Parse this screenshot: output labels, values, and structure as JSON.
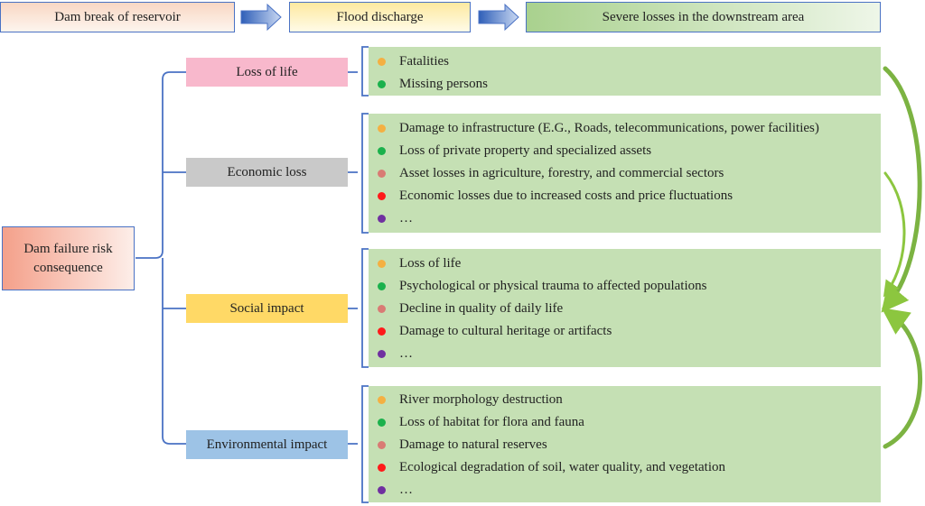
{
  "flow": {
    "steps": [
      "Dam break of reservoir",
      "Flood discharge",
      "Severe losses in the downstream area"
    ]
  },
  "root": {
    "line1": "Dam failure risk",
    "line2": "consequence"
  },
  "bullet_colors": [
    "#f4b042",
    "#1bb14c",
    "#d97b74",
    "#ff1a1a",
    "#7030a0"
  ],
  "categories": [
    {
      "label": "Loss of life",
      "color": "#f8b8cc",
      "items": [
        "Fatalities",
        "Missing persons"
      ]
    },
    {
      "label": "Economic loss",
      "color": "#c9c9c9",
      "items": [
        "Damage to infrastructure (E.G., Roads, telecommunications, power facilities)",
        "Loss of private property and specialized assets",
        "Asset losses in agriculture, forestry, and commercial sectors",
        "Economic losses due to increased costs and price fluctuations",
        "…"
      ]
    },
    {
      "label": "Social impact",
      "color": "#ffd966",
      "items": [
        "Loss of life",
        "Psychological or physical trauma to affected populations",
        "Decline in quality of daily life",
        "Damage to cultural heritage or artifacts",
        "…"
      ]
    },
    {
      "label": "Environmental impact",
      "color": "#9dc3e6",
      "items": [
        "River morphology destruction",
        "Loss of habitat for flora and fauna",
        "Damage to natural reserves",
        "Ecological degradation of soil, water quality, and vegetation",
        "…"
      ]
    }
  ]
}
